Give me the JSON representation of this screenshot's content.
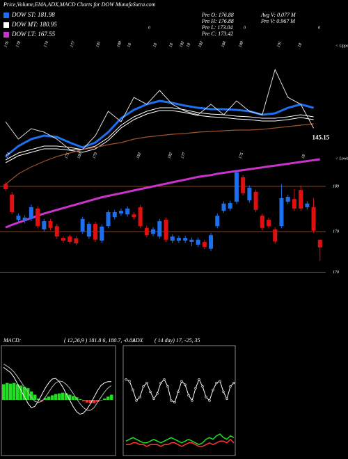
{
  "header": {
    "title": "Price,Volume,EMA,ADX,MACD Charts for DOW MunafaSutra.com"
  },
  "info": [
    "Pre O: 176.88",
    "Pre H: 176.88",
    "Pre L: 173.04",
    "Pre C: 173.42",
    "Avg V: 0.077 M",
    "Pre V: 0.967 M"
  ],
  "chart_data": [
    {
      "type": "line",
      "ylim": [
        125,
        175
      ],
      "series": [
        {
          "name": "DOW ST: 181.98",
          "color": "#1e6ff0",
          "values": [
            135,
            138.75,
            141.25,
            142.5,
            142,
            140,
            138.25,
            140,
            143.75,
            148.75,
            151.75,
            153.75,
            155,
            154.25,
            153.25,
            152.5,
            152,
            152,
            151.75,
            151.25,
            150,
            150.5,
            152.5,
            153.75,
            152.5
          ]
        },
        {
          "name": "DOW MT: 180.95",
          "color": "#ffffff",
          "values": [
            133.75,
            136.25,
            137.5,
            138.75,
            138.75,
            138.25,
            137.5,
            138.75,
            141.75,
            146.25,
            149.25,
            151.25,
            152.5,
            152.5,
            151.75,
            150.75,
            150.25,
            150,
            149.5,
            149.25,
            148.75,
            148.75,
            149.25,
            150,
            149.25
          ]
        },
        {
          "color": "#a0522d",
          "values": [
            125,
            128.75,
            131.25,
            133.25,
            135,
            136.25,
            137.5,
            138.25,
            139.25,
            140,
            141.25,
            142,
            142.5,
            143,
            143.25,
            143.75,
            144,
            144.25,
            144.5,
            144.5,
            144.75,
            145.25,
            145.75,
            146.25,
            146.75
          ]
        },
        {
          "color": "#dddddd",
          "values": [
            147.5,
            141.25,
            145,
            143.75,
            141.25,
            137.5,
            137.5,
            142.5,
            151.25,
            147.5,
            156.25,
            153.75,
            158.75,
            153.75,
            151.25,
            150,
            153.75,
            150,
            155,
            151.25,
            150,
            166.25,
            156.25,
            153.75,
            145.15
          ],
          "value_labels_last": "145.15"
        }
      ],
      "top_labels": [
        "176",
        "178",
        "174",
        "177",
        "181",
        "180",
        "18",
        "18",
        "18",
        "182",
        "18",
        "182",
        "184",
        "180",
        "191",
        "18"
      ],
      "zero_labels": [
        "0",
        "0",
        "0"
      ],
      "annotations": [
        "< Upper",
        "< Lower"
      ]
    },
    {
      "type": "candlestick",
      "ylim": [
        168,
        197
      ],
      "yticks": [
        170,
        179,
        189
      ],
      "grid": true,
      "grid_color": "#8b4513",
      "up_color": "#1e6ff0",
      "down_color": "#e01010",
      "open": [
        189.5,
        187.2,
        181.6,
        181.3,
        181.8,
        184.1,
        179.5,
        181.3,
        180.2,
        177.6,
        177.9,
        177.5,
        179,
        177.9,
        180.7,
        177,
        180.2,
        182.2,
        183,
        182.8,
        182.8,
        184.4,
        179.8,
        178.5,
        177.9,
        181.6,
        177,
        177,
        177,
        176.7,
        176.1,
        176.7,
        175.2,
        180.2,
        183.6,
        184.1,
        185.6,
        191,
        185.9,
        187.8,
        182.5,
        181.6,
        179.5,
        180.2,
        185.6,
        186.2,
        188.2,
        184.4,
        184.4,
        177.2
      ],
      "high": [
        190,
        187.8,
        183,
        182.6,
        185,
        184.6,
        181.8,
        181.8,
        180.7,
        178,
        178.3,
        178,
        182.3,
        181.2,
        181.2,
        180.6,
        183.8,
        183.8,
        184.1,
        184.6,
        183.3,
        184.9,
        180.3,
        180,
        181.8,
        182.1,
        178.4,
        178.1,
        178.1,
        177.7,
        177.7,
        177.2,
        178.7,
        183,
        185.7,
        185.8,
        192.6,
        191.5,
        189.2,
        188.3,
        183,
        182.1,
        180,
        189.5,
        187.2,
        188.4,
        189.2,
        185.7,
        186.4,
        177.2
      ],
      "low": [
        188,
        182.8,
        181.2,
        180.8,
        181.3,
        179.7,
        179,
        179.3,
        177.4,
        176.5,
        176.3,
        176,
        178.5,
        177.4,
        176.7,
        176.5,
        179.7,
        181.7,
        182.5,
        182.3,
        181.7,
        179.7,
        177.7,
        178,
        177.4,
        176.7,
        176.5,
        176.5,
        176.5,
        175.8,
        175.6,
        175.1,
        174.7,
        179.7,
        183.1,
        183.6,
        185.1,
        187,
        185.4,
        183.3,
        179.3,
        179.7,
        176.3,
        179.7,
        185.1,
        183.6,
        183.6,
        183.9,
        178.7,
        172.5
      ],
      "close": [
        188.4,
        183.3,
        182.5,
        182.1,
        184.4,
        180.2,
        181.3,
        179.8,
        177.9,
        177,
        176.7,
        176.4,
        181.8,
        180.7,
        177.2,
        180.1,
        183.3,
        183.3,
        183.6,
        184.1,
        182.2,
        180.2,
        178.2,
        179.5,
        181.3,
        177.2,
        177.9,
        177.6,
        177.6,
        177.2,
        177.2,
        175.6,
        178.2,
        182.5,
        185.2,
        185.3,
        192.1,
        187.5,
        188.7,
        183.8,
        179.8,
        180.2,
        176.8,
        186.4,
        186.7,
        184.1,
        184.1,
        185.2,
        179.2,
        175.5
      ],
      "series": [
        {
          "name": "DOW LT: 167.55",
          "color": "#cc33cc",
          "values": [
            179.9,
            180.5,
            181,
            181.5,
            182,
            182.5,
            183,
            183.4,
            183.8,
            184.2,
            184.6,
            185,
            185.4,
            185.8,
            186.2,
            186.6,
            186.9,
            187.2,
            187.5,
            187.8,
            188.1,
            188.4,
            188.7,
            189,
            189.3,
            189.6,
            189.9,
            190.2,
            190.5,
            190.8,
            191.1,
            191.3,
            191.5,
            191.8,
            192,
            192.2,
            192.4,
            192.6,
            192.8,
            193,
            193.2,
            193.4,
            193.6,
            193.8,
            194,
            194.2,
            194.4,
            194.6,
            194.8,
            195
          ]
        }
      ],
      "mid_labels": [
        "174",
        "171",
        "180",
        "179",
        "182",
        "182",
        "177",
        "175",
        "18"
      ]
    },
    {
      "type": "macd",
      "title": "MACD:",
      "subtitle": "( 12,26,9 ) 181.8 6, 180.7, -0.01",
      "ylim": [
        -8,
        8
      ],
      "histogram": [
        2.4,
        2.6,
        2.5,
        2.6,
        2.4,
        2.2,
        2,
        1.8,
        1.3,
        0.8,
        0.2,
        -0.2,
        0.3,
        0.5,
        0.7,
        0.9,
        1,
        1.1,
        1,
        0.8,
        0.6,
        0.4,
        0.1,
        -0.2,
        -0.4,
        -0.5,
        -0.5,
        -0.3,
        -0.1,
        0.2,
        0.5,
        0.8
      ],
      "up_color": "#22dd22",
      "down_color": "#ff3333",
      "series": [
        {
          "color": "#ffffff",
          "values": [
            5,
            4.6,
            4.2,
            3.5,
            2.5,
            1.5,
            0.5,
            -0.5,
            -1.2,
            -1,
            -0.2,
            0.8,
            1.8,
            2.6,
            3.2,
            3.3,
            2.8,
            2,
            1,
            0,
            -1,
            -1.8,
            -2.2,
            -2,
            -1.4,
            -0.6,
            0.4,
            1.4,
            2.2,
            2.6,
            2.8,
            2.8
          ]
        },
        {
          "color": "#bbbbbb",
          "values": [
            5.5,
            5.2,
            4.8,
            4.3,
            3.6,
            2.8,
            2,
            1.2,
            0.4,
            -0.2,
            -0.4,
            -0.2,
            0.4,
            1.2,
            2,
            2.6,
            2.9,
            2.8,
            2.4,
            1.8,
            1,
            0.2,
            -0.6,
            -1.2,
            -1.6,
            -1.6,
            -1.2,
            -0.4,
            0.4,
            1.2,
            1.8,
            2.2
          ]
        }
      ]
    },
    {
      "type": "adx",
      "title": "ADX",
      "subtitle": "( 14 day) 17, -25, 35",
      "ylim": [
        0,
        60
      ],
      "series": [
        {
          "color": "#ffffff",
          "values": [
            42,
            41,
            36,
            30,
            32,
            38,
            40,
            35,
            31,
            34,
            40,
            42,
            38,
            30,
            29,
            35,
            41,
            39,
            33,
            30,
            37,
            42,
            38,
            32,
            30,
            36,
            40,
            41,
            35,
            31,
            38,
            40
          ]
        },
        {
          "color": "#22dd22",
          "values": [
            7,
            8,
            9,
            8,
            7,
            6,
            6,
            7,
            8,
            7,
            6,
            7,
            8,
            9,
            8,
            7,
            6,
            7,
            8,
            7,
            6,
            5,
            6,
            8,
            9,
            8,
            10,
            11,
            9,
            8,
            10,
            9
          ]
        },
        {
          "color": "#ff3333",
          "values": [
            5,
            5,
            6,
            6,
            5,
            5,
            4,
            5,
            5,
            5,
            4,
            5,
            5,
            6,
            6,
            5,
            4,
            5,
            6,
            6,
            5,
            4,
            4,
            5,
            6,
            5,
            6,
            7,
            7,
            6,
            8,
            6
          ]
        }
      ]
    }
  ]
}
